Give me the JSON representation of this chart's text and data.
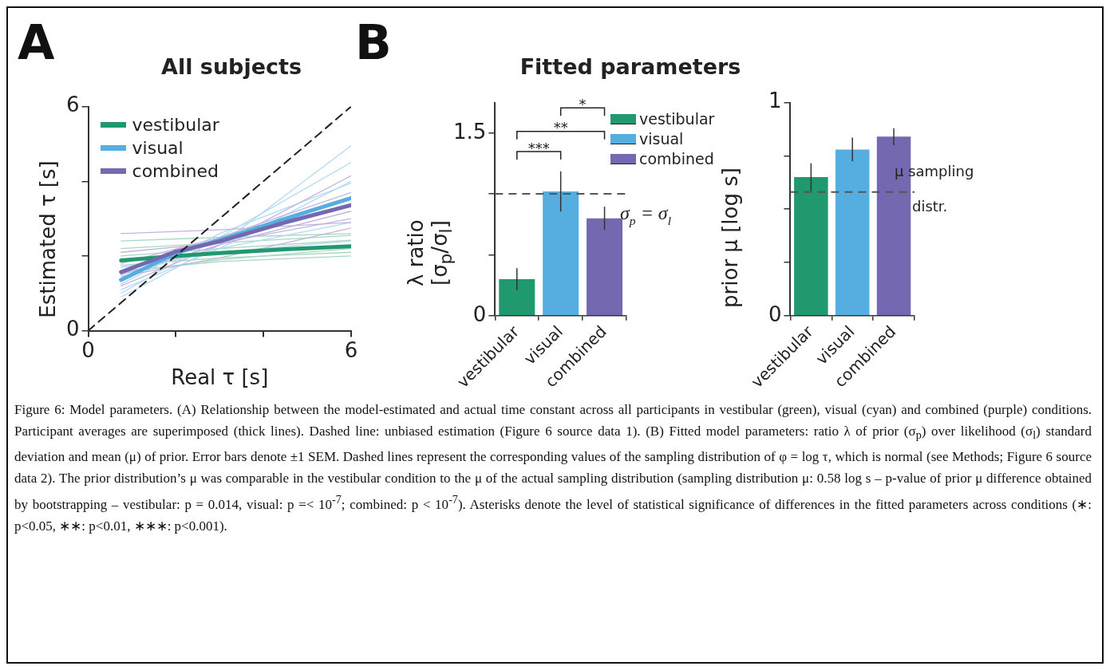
{
  "chart_data": [
    {
      "type": "line",
      "title": "All subjects",
      "xlabel": "Real τ [s]",
      "ylabel": "Estimated τ [s]",
      "xlim": [
        0,
        6
      ],
      "ylim": [
        0,
        6
      ],
      "xticks": [
        0,
        {
          "value": 2,
          "label": null
        },
        {
          "value": 4,
          "label": null
        },
        6
      ],
      "yticks": [
        0,
        {
          "value": 2,
          "label": null
        },
        {
          "value": 4,
          "label": null
        },
        6
      ],
      "legend": "top left",
      "annotations": [
        "A",
        "Figure 6: Model parameters. (A) Relationship between the model-estimated and actual time constant across all participants in vestibular (green), visual (cyan) and combined (purple) conditions. Participant averages are superimposed (thick lines). Dashed line: unbiased estimation (Figure 6 source data 1). (B) Fitted model parameters: ratio λ of prior (σ$_{p}$) over likelihood (σ$_{l}$) standard deviation and mean (μ) of prior. Error bars denote ±1 SEM. Dashed lines represent the corresponding values of the sampling distribution of φ = log τ, which is normal (see Methods; Figure 6 source data 2). The prior distribution’s μ was comparable in the vestibular condition to the μ of the actual sampling distribution (sampling distribution μ: 0.58 log s – p-value of prior μ difference obtained by bootstrapping – vestibular: p = 0.014, visual: p =< 10$^{-7}$; combined: p < 10$^{-7}$). Asterisks denote the level of statistical significance of differences in the fitted parameters across conditions (∗: p<0.05, ∗∗: p<0.01, ∗∗∗: p<0.001)."
      ],
      "series": [
        {
          "color": "#a9d8c2",
          "x": [
            0.75,
            3,
            6
          ],
          "values": [
            1.6,
            1.85,
            2.0
          ]
        },
        {
          "color": "#a9d8c2",
          "x": [
            0.75,
            3,
            6
          ],
          "values": [
            1.75,
            1.95,
            2.1
          ]
        },
        {
          "color": "#a9d8c2",
          "x": [
            0.75,
            3,
            6
          ],
          "values": [
            2.0,
            2.2,
            2.42
          ]
        },
        {
          "color": "#a9d8c2",
          "x": [
            0.75,
            3,
            6
          ],
          "values": [
            2.2,
            2.35,
            2.55
          ]
        },
        {
          "color": "#a9d8c2",
          "x": [
            0.75,
            3,
            6
          ],
          "values": [
            2.4,
            2.5,
            2.6
          ]
        },
        {
          "color": "#a9d8c2",
          "x": [
            0.75,
            3,
            6
          ],
          "values": [
            1.55,
            1.9,
            2.2
          ]
        },
        {
          "color": "#b3d9f0",
          "x": [
            0.75,
            3,
            6
          ],
          "values": [
            0.9,
            2.3,
            4.95
          ]
        },
        {
          "color": "#b3d9f0",
          "x": [
            0.75,
            3,
            6
          ],
          "values": [
            1.1,
            2.2,
            4.0
          ]
        },
        {
          "color": "#b3d9f0",
          "x": [
            0.75,
            3,
            6
          ],
          "values": [
            1.25,
            2.6,
            3.95
          ]
        },
        {
          "color": "#b3d9f0",
          "x": [
            0.75,
            3,
            6
          ],
          "values": [
            1.5,
            2.2,
            2.9
          ]
        },
        {
          "color": "#b3d9f0",
          "x": [
            0.75,
            3,
            6
          ],
          "values": [
            1.0,
            2.5,
            4.5
          ]
        },
        {
          "color": "#b3d9f0",
          "x": [
            0.75,
            3,
            6
          ],
          "values": [
            1.7,
            2.1,
            2.4
          ]
        },
        {
          "color": "#c0b5de",
          "x": [
            0.75,
            3,
            6
          ],
          "values": [
            2.6,
            2.7,
            2.9
          ]
        },
        {
          "color": "#c0b5de",
          "x": [
            0.75,
            3,
            6
          ],
          "values": [
            1.2,
            2.3,
            4.15
          ]
        },
        {
          "color": "#c0b5de",
          "x": [
            0.75,
            3,
            6
          ],
          "values": [
            1.5,
            2.3,
            3.2
          ]
        },
        {
          "color": "#c0b5de",
          "x": [
            0.75,
            3,
            6
          ],
          "values": [
            1.8,
            2.5,
            3.7
          ]
        },
        {
          "color": "#c0b5de",
          "x": [
            0.75,
            3,
            6
          ],
          "values": [
            1.45,
            1.95,
            2.75
          ]
        },
        {
          "color": "#c0b5de",
          "x": [
            0.75,
            3,
            6
          ],
          "values": [
            2.1,
            2.35,
            3.0
          ]
        },
        {
          "name": "vestibular",
          "color": "#21996e",
          "x": [
            0.75,
            2,
            3,
            4.5,
            6
          ],
          "values": [
            1.88,
            2.0,
            2.08,
            2.18,
            2.26
          ]
        },
        {
          "name": "visual",
          "color": "#55ade0",
          "x": [
            0.75,
            2,
            3,
            4.5,
            6
          ],
          "values": [
            1.36,
            2.08,
            2.43,
            3.0,
            3.55
          ]
        },
        {
          "name": "combined",
          "color": "#7468b0",
          "x": [
            0.75,
            2,
            3,
            4.5,
            6
          ],
          "values": [
            1.57,
            2.12,
            2.39,
            2.9,
            3.36
          ]
        },
        {
          "color": "#222222",
          "line_style": "dashed",
          "x": [
            0,
            6
          ],
          "values": [
            0,
            6
          ]
        }
      ]
    },
    {
      "type": "bar",
      "title": "Fitted parameters",
      "ylabel": "λ ratio\n[σ$_{p}$/σ$_{l}$]",
      "categories": [
        "vestibular",
        "visual",
        "combined"
      ],
      "series": [
        {
          "name": "vestibular",
          "color": "#21996e",
          "values": [
            0.3,
            null,
            null
          ],
          "errors": [
            0.09,
            null,
            null
          ]
        },
        {
          "name": "visual",
          "color": "#55ade0",
          "values": [
            null,
            1.02,
            null
          ],
          "errors": [
            null,
            0.165,
            null
          ]
        },
        {
          "name": "combined",
          "color": "#7468b0",
          "values": [
            null,
            null,
            0.8
          ],
          "errors": [
            null,
            null,
            0.095
          ]
        }
      ],
      "ylim": [
        0,
        1.75
      ],
      "yticks": [
        0,
        {
          "value": 0.5,
          "label": null
        },
        {
          "value": 1,
          "label": null
        },
        1.5
      ],
      "legend": "top right",
      "ref_lines": [
        {
          "axis": "y",
          "value": 1,
          "label": "σ$_{p}$ = σ$_{l}$",
          "color": "#555555",
          "line_style": "dashed"
        }
      ],
      "annotations": [
        "B",
        "***",
        "**",
        "*"
      ]
    },
    {
      "type": "bar",
      "ylabel": "prior μ [log s]",
      "categories": [
        "vestibular",
        "visual",
        "combined"
      ],
      "values": [
        0.65,
        0.78,
        0.84
      ],
      "errors": [
        0.065,
        0.056,
        0.04
      ],
      "colors": [
        "#21996e",
        "#55ade0",
        "#7468b0"
      ],
      "ylim": [
        0,
        1
      ],
      "yticks": [
        0,
        {
          "value": 0.25,
          "label": null
        },
        {
          "value": 0.5,
          "label": null
        },
        {
          "value": 0.75,
          "label": null
        },
        1
      ],
      "ref_lines": [
        {
          "axis": "y",
          "value": 0.58,
          "label": "μ sampling\ndistr.",
          "color": "#555555",
          "line_style": "dashed"
        }
      ]
    }
  ]
}
